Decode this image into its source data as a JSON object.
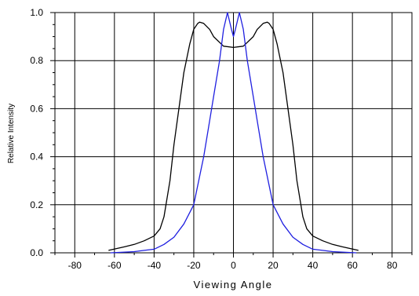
{
  "chart_data": {
    "type": "line",
    "xlabel": "Viewing Angle",
    "ylabel": "Relative Intensity",
    "xlim": [
      -90,
      90
    ],
    "ylim": [
      0,
      1.0
    ],
    "x_ticks": [
      -80,
      -60,
      -40,
      -20,
      0,
      20,
      40,
      60,
      80
    ],
    "x_tick_labels": [
      "-80",
      "-60",
      "-40",
      "-20",
      "0",
      "20",
      "40",
      "60",
      "80"
    ],
    "y_ticks": [
      0,
      0.2,
      0.4,
      0.6,
      0.8,
      1.0
    ],
    "y_tick_labels": [
      "0.0",
      "0.2",
      "0.4",
      "0.6",
      "0.8",
      "1.0"
    ],
    "grid": true,
    "series": [
      {
        "color": "#000000",
        "x": [
          -63,
          -55,
          -50,
          -45,
          -40,
          -37,
          -35,
          -32,
          -30,
          -25,
          -22,
          -20,
          -18,
          -17,
          -15,
          -12,
          -10,
          -5,
          0,
          5,
          10,
          12,
          15,
          17,
          18,
          20,
          22,
          25,
          30,
          32,
          35,
          37,
          40,
          45,
          50,
          55,
          63
        ],
        "y": [
          0.01,
          0.025,
          0.035,
          0.05,
          0.07,
          0.1,
          0.15,
          0.3,
          0.45,
          0.75,
          0.87,
          0.93,
          0.955,
          0.96,
          0.955,
          0.93,
          0.9,
          0.86,
          0.855,
          0.86,
          0.9,
          0.93,
          0.955,
          0.96,
          0.955,
          0.93,
          0.87,
          0.75,
          0.45,
          0.3,
          0.15,
          0.1,
          0.07,
          0.05,
          0.035,
          0.025,
          0.01
        ]
      },
      {
        "color": "#1f1fe0",
        "x": [
          -62,
          -50,
          -45,
          -40,
          -35,
          -30,
          -25,
          -20,
          -15,
          -12,
          -10,
          -7,
          -5,
          -3,
          -1,
          0,
          1,
          3,
          5,
          7,
          10,
          12,
          15,
          20,
          25,
          30,
          35,
          40,
          45,
          50,
          62
        ],
        "y": [
          0.0,
          0.005,
          0.01,
          0.015,
          0.035,
          0.065,
          0.12,
          0.2,
          0.4,
          0.55,
          0.65,
          0.8,
          0.93,
          1.0,
          0.93,
          0.9,
          0.93,
          1.0,
          0.93,
          0.8,
          0.65,
          0.55,
          0.4,
          0.2,
          0.12,
          0.065,
          0.035,
          0.015,
          0.01,
          0.005,
          0.0
        ]
      }
    ]
  }
}
